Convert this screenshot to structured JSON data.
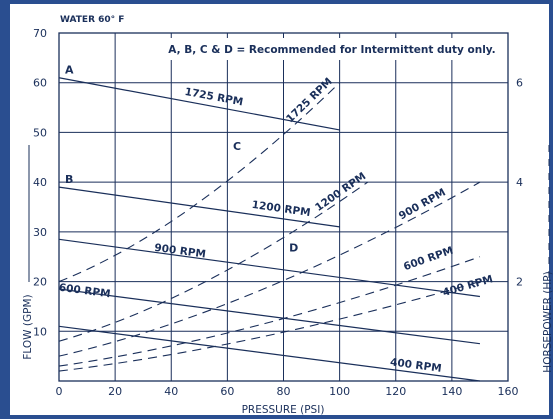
{
  "chart_data": {
    "type": "line",
    "header": "WATER 60° F",
    "note": "A, B, C & D = Recommended for Intermittent duty only.",
    "xlabel": "PRESSURE (PSI)",
    "ylabel": "FLOW (GPM)",
    "y2label": "HORSEPOWER (HP)",
    "xlim": [
      0,
      160
    ],
    "ylim": [
      0,
      70
    ],
    "y2lim": [
      0,
      7
    ],
    "grid": true,
    "x_ticks": [
      "0",
      "20",
      "40",
      "60",
      "80",
      "100",
      "120",
      "140",
      "160"
    ],
    "y_ticks": [
      "10",
      "20",
      "30",
      "40",
      "50",
      "60",
      "70"
    ],
    "y2_ticks": [
      "2",
      "4",
      "6"
    ],
    "flow_series": [
      {
        "name": "1725 RPM",
        "letter": "A",
        "x": [
          0,
          100
        ],
        "y": [
          61,
          50.5
        ],
        "label_at": [
          55,
          56.5
        ]
      },
      {
        "name": "1200 RPM",
        "letter": "B",
        "x": [
          0,
          100
        ],
        "y": [
          39,
          31
        ],
        "label_at": [
          79,
          34
        ]
      },
      {
        "name": "900 RPM",
        "letter": "",
        "x": [
          0,
          150
        ],
        "y": [
          28.5,
          17
        ],
        "label_at": [
          43,
          25.5
        ]
      },
      {
        "name": "600 RPM",
        "letter": "",
        "x": [
          0,
          150
        ],
        "y": [
          18.5,
          7.5
        ],
        "label_at": [
          9,
          17.5
        ]
      },
      {
        "name": "400 RPM",
        "letter": "",
        "x": [
          0,
          150
        ],
        "y": [
          11,
          0
        ],
        "label_at": [
          127,
          2.5
        ]
      }
    ],
    "hp_series": [
      {
        "name": "1725 RPM",
        "letter": "C",
        "x": [
          0,
          100
        ],
        "hp": [
          2,
          6
        ],
        "label_at": [
          90,
          56
        ],
        "letter_at": [
          62,
          46.5
        ]
      },
      {
        "name": "1200 RPM",
        "letter": "D",
        "x": [
          0,
          110
        ],
        "hp": [
          0.8,
          4
        ],
        "label_at": [
          101,
          37.5
        ],
        "letter_at": [
          82,
          26
        ]
      },
      {
        "name": "900 RPM",
        "letter": "",
        "x": [
          0,
          150
        ],
        "hp": [
          0.5,
          4
        ],
        "label_at": [
          130,
          35
        ]
      },
      {
        "name": "600 RPM",
        "letter": "",
        "x": [
          0,
          150
        ],
        "hp": [
          0.3,
          2.5
        ],
        "label_at": [
          132,
          24
        ]
      },
      {
        "name": "400 RPM",
        "letter": "",
        "x": [
          0,
          150
        ],
        "hp": [
          0.2,
          2
        ],
        "label_at": [
          146,
          18.5
        ]
      }
    ]
  }
}
